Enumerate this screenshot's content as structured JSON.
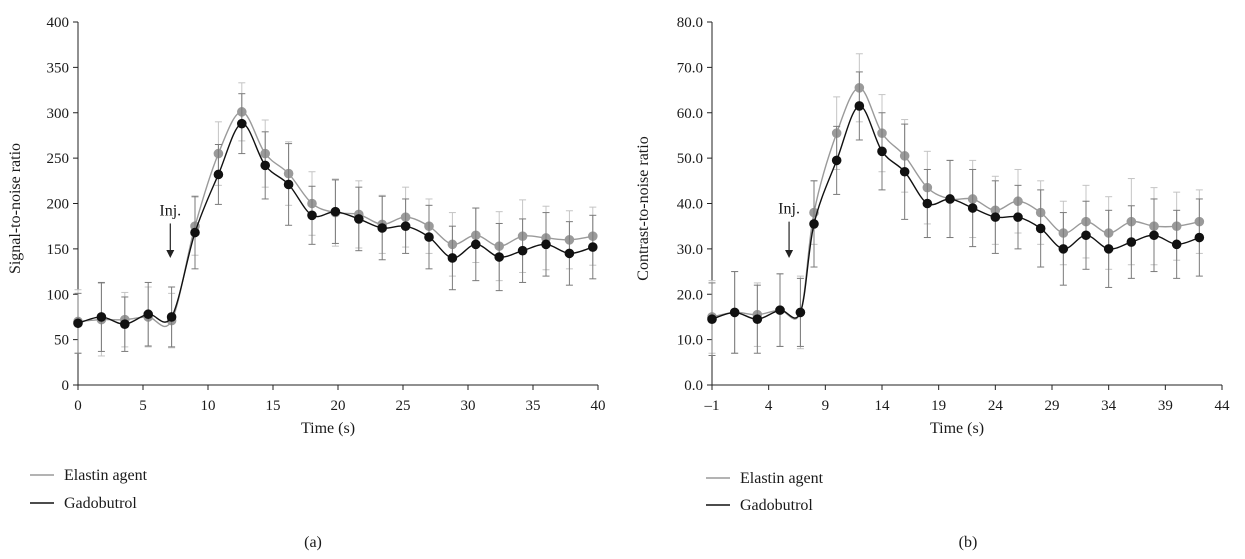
{
  "colors": {
    "elastin": "#9a9a9a",
    "gadobutrol": "#111111",
    "errorbar_elastin": "#c4c4c4",
    "errorbar_gadobutrol": "#7a7a7a",
    "axis": "#222222"
  },
  "chart_data": [
    {
      "type": "line",
      "panel_label": "(a)",
      "xlabel": "Time (s)",
      "ylabel": "Signal-to-noise ratio",
      "xlim": [
        0,
        40
      ],
      "ylim": [
        0,
        400
      ],
      "x_ticks": [
        0,
        5,
        10,
        15,
        20,
        25,
        30,
        35,
        40
      ],
      "x_tick_labels": [
        "0",
        "5",
        "10",
        "15",
        "20",
        "25",
        "30",
        "35",
        "40"
      ],
      "y_ticks": [
        0,
        50,
        100,
        150,
        200,
        250,
        300,
        350,
        400
      ],
      "y_tick_labels": [
        "0",
        "50",
        "100",
        "150",
        "200",
        "250",
        "300",
        "350",
        "400"
      ],
      "grid": false,
      "legend_position": "bottom-left",
      "annotation": {
        "text": "Inj.",
        "x": 7.1,
        "arrow_from_y": 178,
        "arrow_to_y": 140
      },
      "series": [
        {
          "name": "Elastin agent",
          "x": [
            0,
            1.8,
            3.6,
            5.4,
            7.2,
            9.0,
            10.8,
            12.6,
            14.4,
            16.2,
            18.0,
            19.8,
            21.6,
            23.4,
            25.2,
            27.0,
            28.8,
            30.6,
            32.4,
            34.2,
            36.0,
            37.8,
            39.6
          ],
          "y": [
            70,
            72,
            72,
            75,
            71,
            175,
            255,
            301,
            255,
            233,
            200,
            190,
            188,
            177,
            185,
            175,
            155,
            165,
            153,
            164,
            162,
            160,
            164
          ],
          "err": [
            35,
            40,
            30,
            33,
            30,
            32,
            35,
            32,
            37,
            35,
            35,
            37,
            37,
            32,
            33,
            30,
            35,
            30,
            38,
            40,
            35,
            32,
            32
          ]
        },
        {
          "name": "Gadobutrol",
          "x": [
            0,
            1.8,
            3.6,
            5.4,
            7.2,
            9.0,
            10.8,
            12.6,
            14.4,
            16.2,
            18.0,
            19.8,
            21.6,
            23.4,
            25.2,
            27.0,
            28.8,
            30.6,
            32.4,
            34.2,
            36.0,
            37.8,
            39.6
          ],
          "y": [
            68,
            75,
            67,
            78,
            75,
            168,
            232,
            288,
            242,
            221,
            187,
            191,
            183,
            173,
            175,
            163,
            140,
            155,
            141,
            148,
            155,
            145,
            152
          ],
          "err": [
            33,
            38,
            30,
            35,
            33,
            40,
            33,
            33,
            37,
            45,
            32,
            35,
            35,
            35,
            30,
            35,
            35,
            40,
            37,
            35,
            35,
            35,
            35
          ]
        }
      ]
    },
    {
      "type": "line",
      "panel_label": "(b)",
      "xlabel": "Time (s)",
      "ylabel": "Contrast-to-noise ratio",
      "xlim": [
        -1,
        44
      ],
      "ylim": [
        0,
        80
      ],
      "x_ticks": [
        -1,
        4,
        9,
        14,
        19,
        24,
        29,
        34,
        39,
        44
      ],
      "x_tick_labels": [
        "–1",
        "4",
        "9",
        "14",
        "19",
        "24",
        "29",
        "34",
        "39",
        "44"
      ],
      "y_ticks": [
        0,
        10,
        20,
        30,
        40,
        50,
        60,
        70,
        80
      ],
      "y_tick_labels": [
        "0.0",
        "10.0",
        "20.0",
        "30.0",
        "40.0",
        "50.0",
        "60.0",
        "70.0",
        "80.0"
      ],
      "grid": false,
      "legend_position": "bottom-left",
      "annotation": {
        "text": "Inj.",
        "x": 5.8,
        "arrow_from_y": 36,
        "arrow_to_y": 28
      },
      "series": [
        {
          "name": "Elastin agent",
          "x": [
            0,
            1.8,
            3.6,
            5.4,
            7.2,
            9.0,
            10.8,
            12.6,
            14.4,
            16.2,
            18.0,
            19.8,
            21.6,
            23.4,
            25.2,
            27.0,
            28.8,
            30.6,
            32.4,
            34.2,
            36.0,
            37.8,
            39.6
          ],
          "x_plot": [
            -1,
            1,
            3,
            5,
            6.8,
            8,
            10,
            12,
            14,
            16,
            18,
            20,
            22,
            24,
            26,
            28,
            30,
            32,
            34,
            36,
            38,
            40,
            42
          ],
          "y": [
            15,
            16,
            15.5,
            16.5,
            16,
            38,
            55.5,
            65.5,
            55.5,
            50.5,
            43.5,
            41,
            41,
            38.5,
            40.5,
            38,
            33.5,
            36,
            33.5,
            36,
            35,
            35,
            36
          ],
          "err": [
            8,
            9,
            7,
            8,
            8,
            7,
            8,
            7.5,
            8.5,
            8,
            8,
            8.5,
            8.5,
            7.5,
            7,
            7,
            7,
            8,
            8,
            9.5,
            8.5,
            7.5,
            7
          ]
        },
        {
          "name": "Gadobutrol",
          "x": [
            0,
            1.8,
            3.6,
            5.4,
            7.2,
            9.0,
            10.8,
            12.6,
            14.4,
            16.2,
            18.0,
            19.8,
            21.6,
            23.4,
            25.2,
            27.0,
            28.8,
            30.6,
            32.4,
            34.2,
            36.0,
            37.8,
            39.6
          ],
          "x_plot": [
            -1,
            1,
            3,
            5,
            6.8,
            8,
            10,
            12,
            14,
            16,
            18,
            20,
            22,
            24,
            26,
            28,
            30,
            32,
            34,
            36,
            38,
            40,
            42
          ],
          "y": [
            14.5,
            16,
            14.5,
            16.5,
            16,
            35.5,
            49.5,
            61.5,
            51.5,
            47,
            40,
            41,
            39,
            37,
            37,
            34.5,
            30,
            33,
            30,
            31.5,
            33,
            31,
            32.5
          ],
          "err": [
            8,
            9,
            7.5,
            8,
            7.5,
            9.5,
            7.5,
            7.5,
            8.5,
            10.5,
            7.5,
            8.5,
            8.5,
            8,
            7,
            8.5,
            8,
            7.5,
            8.5,
            8,
            8,
            7.5,
            8.5
          ]
        }
      ]
    }
  ]
}
